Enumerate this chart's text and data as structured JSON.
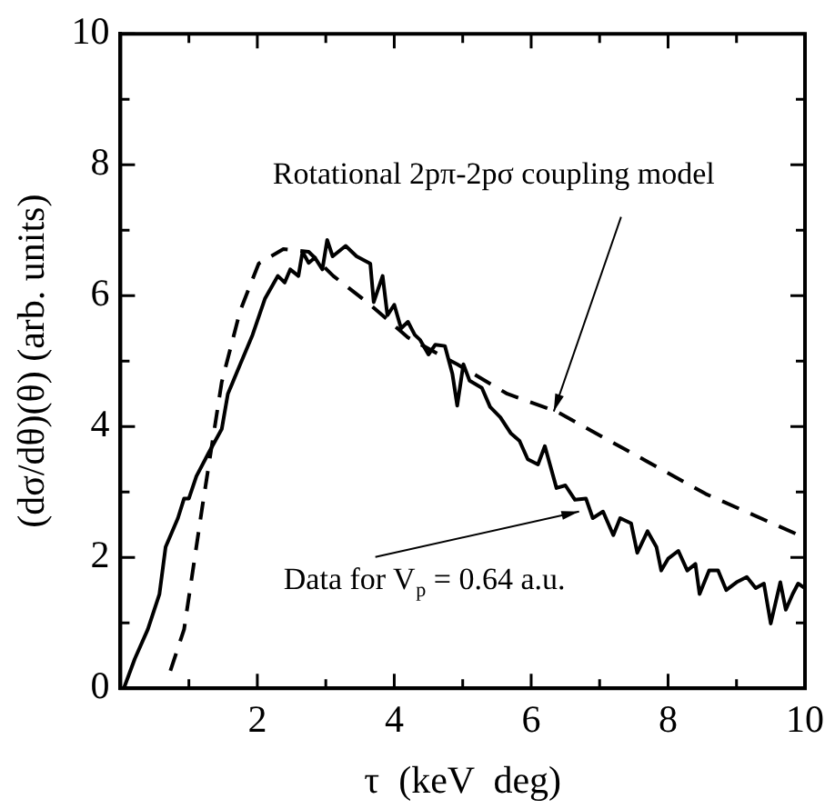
{
  "chart_data": {
    "type": "line",
    "xlabel": "τ  (keV  deg)",
    "ylabel": "(dσ/dθ)(θ) (arb. units)",
    "xlim": [
      0,
      10
    ],
    "ylim": [
      0,
      10
    ],
    "xticks": [
      {
        "value": 0,
        "label": null
      },
      {
        "value": 1,
        "label": null
      },
      2,
      {
        "value": 3,
        "label": null
      },
      4,
      {
        "value": 5,
        "label": null
      },
      6,
      {
        "value": 7,
        "label": null
      },
      8,
      {
        "value": 9,
        "label": null
      },
      10
    ],
    "yticks": [
      0,
      {
        "value": 1,
        "label": null
      },
      2,
      {
        "value": 3,
        "label": null
      },
      4,
      {
        "value": 5,
        "label": null
      },
      6,
      {
        "value": 7,
        "label": null
      },
      8,
      {
        "value": 9,
        "label": null
      },
      10
    ],
    "grid": false,
    "legend": false,
    "marker": "none",
    "series": [
      {
        "color": "#000000",
        "line_style": "solid",
        "x": [
          0.05,
          0.21,
          0.4,
          0.57,
          0.66,
          0.84,
          0.93,
          1.0,
          1.11,
          1.29,
          1.48,
          1.57,
          1.75,
          1.93,
          2.11,
          2.3,
          2.4,
          2.48,
          2.6,
          2.66,
          2.75,
          2.84,
          2.95,
          3.02,
          3.1,
          3.29,
          3.45,
          3.65,
          3.7,
          3.83,
          3.9,
          4.0,
          4.1,
          4.2,
          4.3,
          4.38,
          4.5,
          4.6,
          4.74,
          4.85,
          4.92,
          5.01,
          5.1,
          5.28,
          5.4,
          5.55,
          5.7,
          5.83,
          5.95,
          6.1,
          6.2,
          6.37,
          6.5,
          6.64,
          6.8,
          6.9,
          7.05,
          7.2,
          7.3,
          7.46,
          7.55,
          7.7,
          7.83,
          7.9,
          8.0,
          8.15,
          8.28,
          8.4,
          8.46,
          8.6,
          8.73,
          8.85,
          9.0,
          9.15,
          9.28,
          9.4,
          9.5,
          9.64,
          9.72,
          9.82,
          9.9,
          10
        ],
        "values": [
          0,
          0.45,
          0.9,
          1.44,
          2.16,
          2.6,
          2.9,
          2.9,
          3.24,
          3.6,
          3.96,
          4.5,
          4.95,
          5.4,
          5.95,
          6.3,
          6.2,
          6.4,
          6.3,
          6.67,
          6.5,
          6.58,
          6.4,
          6.85,
          6.6,
          6.76,
          6.6,
          6.49,
          5.9,
          6.3,
          5.7,
          5.86,
          5.5,
          5.6,
          5.4,
          5.32,
          5.1,
          5.25,
          5.23,
          4.8,
          4.32,
          4.95,
          4.7,
          4.59,
          4.3,
          4.14,
          3.9,
          3.78,
          3.5,
          3.42,
          3.7,
          3.06,
          3.1,
          2.88,
          2.9,
          2.6,
          2.7,
          2.34,
          2.6,
          2.52,
          2.07,
          2.4,
          2.16,
          1.8,
          1.98,
          2.1,
          1.8,
          1.9,
          1.44,
          1.8,
          1.8,
          1.5,
          1.62,
          1.7,
          1.53,
          1.6,
          0.99,
          1.62,
          1.2,
          1.44,
          1.6,
          1.53
        ]
      },
      {
        "color": "#000000",
        "line_style": "dashed",
        "x": [
          0.73,
          0.93,
          1.2,
          1.48,
          1.75,
          2.02,
          2.38,
          2.75,
          3.11,
          3.65,
          4.2,
          4.92,
          5.65,
          6.37,
          7.46,
          8.55,
          10
        ],
        "values": [
          0.27,
          0.9,
          2.8,
          4.68,
          5.77,
          6.49,
          6.71,
          6.67,
          6.3,
          5.86,
          5.36,
          4.95,
          4.5,
          4.23,
          3.6,
          2.97,
          2.3
        ]
      }
    ],
    "annotations": [
      {
        "text": "Rotational 2pπ-2pσ coupling model",
        "x": 6.33,
        "y": 4.23
      },
      {
        "text": "Data for V$_{p}$ = 0.64 a.u.",
        "x": 6.7,
        "y": 2.7
      }
    ]
  }
}
